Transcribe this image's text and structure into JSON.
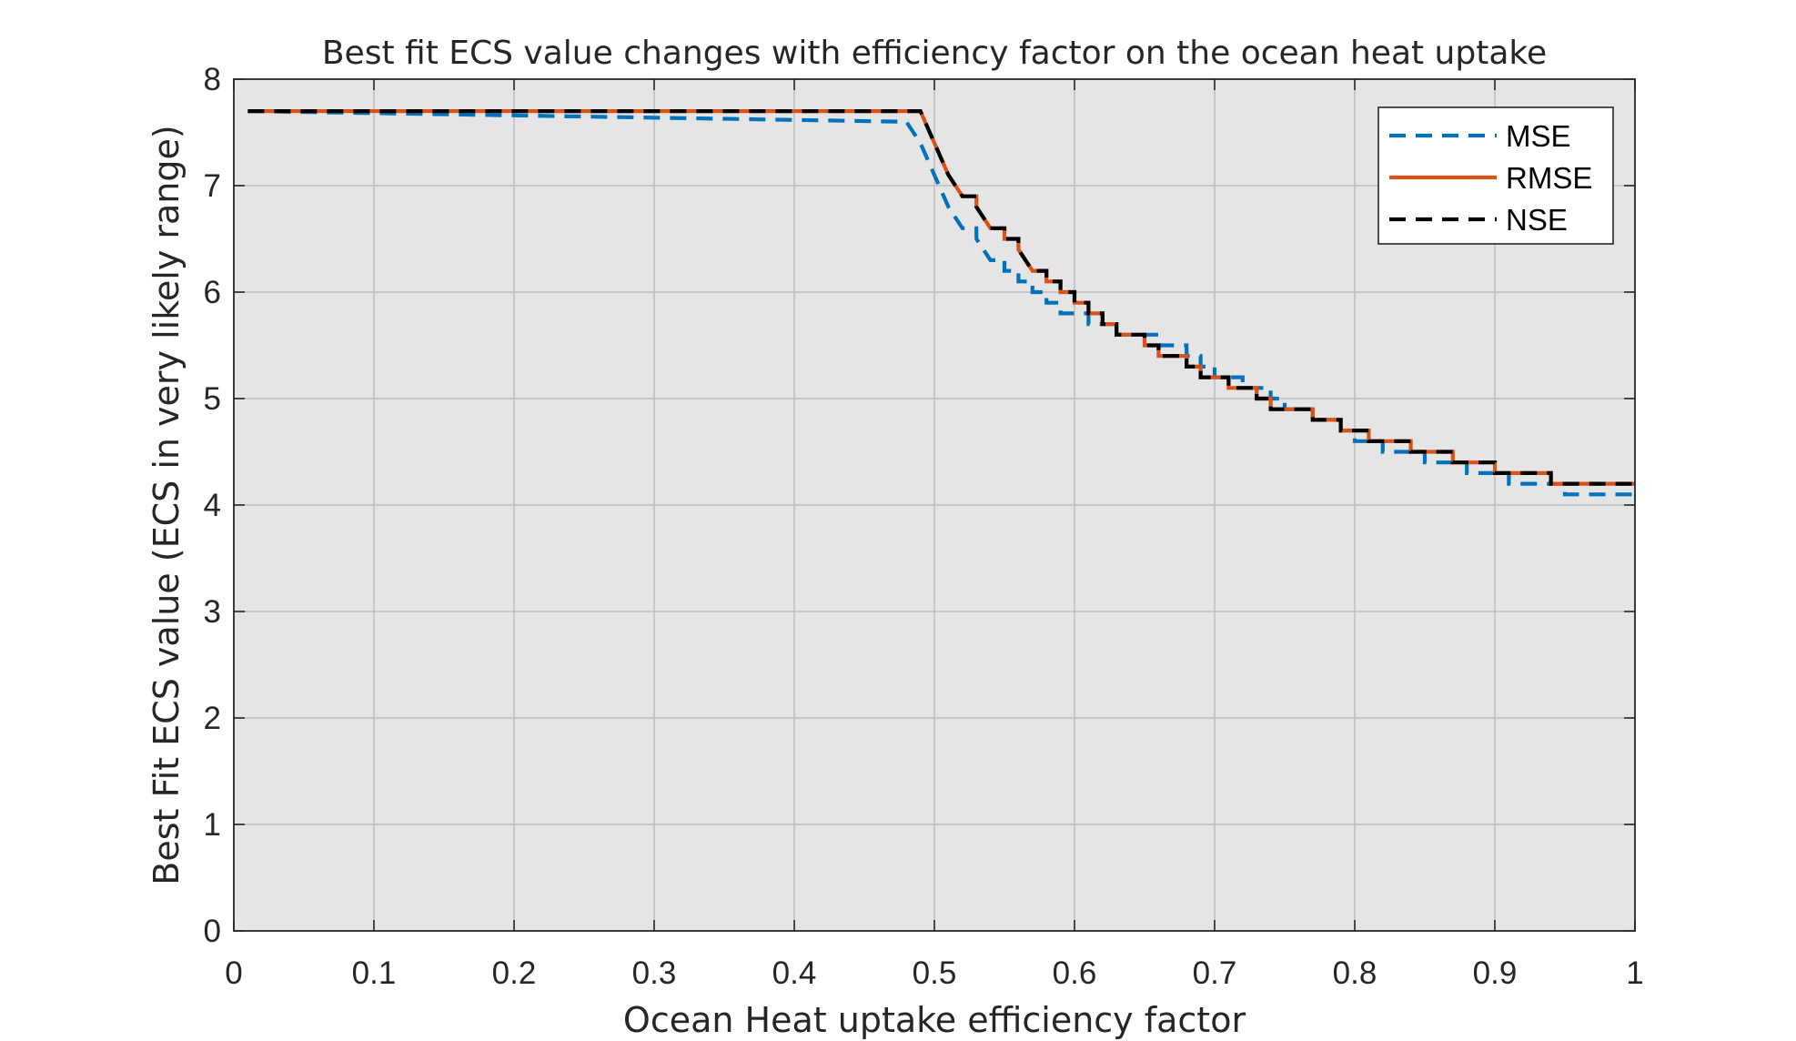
{
  "chart_data": {
    "type": "line",
    "title": "Best fit ECS value changes with efficiency factor on the ocean heat uptake",
    "xlabel": "Ocean Heat uptake efficiency factor",
    "ylabel": "Best Fit ECS value (ECS in very likely range)",
    "xlim": [
      0,
      1
    ],
    "ylim": [
      0,
      8
    ],
    "xticks": [
      0,
      0.1,
      0.2,
      0.3,
      0.4,
      0.5,
      0.6,
      0.7,
      0.8,
      0.9,
      1
    ],
    "xtick_labels": [
      "0",
      "0.1",
      "0.2",
      "0.3",
      "0.4",
      "0.5",
      "0.6",
      "0.7",
      "0.8",
      "0.9",
      "1"
    ],
    "yticks": [
      0,
      1,
      2,
      3,
      4,
      5,
      6,
      7,
      8
    ],
    "ytick_labels": [
      "0",
      "1",
      "2",
      "3",
      "4",
      "5",
      "6",
      "7",
      "8"
    ],
    "grid": true,
    "legend_position": "top-right",
    "background": "#e5e5e5",
    "series": [
      {
        "name": "MSE",
        "color": "#0072bd",
        "style": "dashed",
        "x": [
          0.01,
          0.48,
          0.49,
          0.5,
          0.51,
          0.52,
          0.53,
          0.54,
          0.55,
          0.56,
          0.57,
          0.58,
          0.59,
          0.6,
          0.61,
          0.62,
          0.63,
          0.64,
          0.65,
          0.66,
          0.67,
          0.68,
          0.69,
          0.7,
          0.71,
          0.72,
          0.73,
          0.74,
          0.75,
          0.76,
          0.77,
          0.78,
          0.79,
          0.8,
          0.81,
          0.82,
          0.83,
          0.84,
          0.85,
          0.86,
          0.87,
          0.88,
          0.89,
          0.9,
          0.91,
          0.92,
          0.93,
          0.94,
          0.95,
          0.96,
          0.97,
          0.98,
          0.99,
          1.0
        ],
        "y": [
          7.7,
          7.6,
          7.4,
          7.1,
          6.8,
          6.6,
          6.5,
          6.3,
          6.2,
          6.1,
          6.0,
          5.9,
          5.8,
          5.8,
          5.7,
          5.7,
          5.6,
          5.6,
          5.6,
          5.5,
          5.5,
          5.4,
          5.3,
          5.2,
          5.2,
          5.1,
          5.1,
          5.0,
          4.9,
          4.9,
          4.8,
          4.8,
          4.7,
          4.6,
          4.6,
          4.5,
          4.5,
          4.5,
          4.4,
          4.4,
          4.4,
          4.3,
          4.3,
          4.3,
          4.2,
          4.2,
          4.2,
          4.2,
          4.1,
          4.1,
          4.1,
          4.1,
          4.1,
          4.1
        ]
      },
      {
        "name": "RMSE",
        "color": "#d95319",
        "style": "solid",
        "x": [
          0.01,
          0.49,
          0.5,
          0.51,
          0.52,
          0.53,
          0.54,
          0.55,
          0.56,
          0.57,
          0.58,
          0.59,
          0.6,
          0.61,
          0.62,
          0.63,
          0.64,
          0.65,
          0.66,
          0.67,
          0.68,
          0.69,
          0.7,
          0.71,
          0.72,
          0.73,
          0.74,
          0.75,
          0.76,
          0.77,
          0.78,
          0.79,
          0.8,
          0.81,
          0.82,
          0.83,
          0.84,
          0.85,
          0.86,
          0.87,
          0.88,
          0.89,
          0.9,
          0.91,
          0.92,
          0.93,
          0.94,
          0.95,
          0.96,
          0.97,
          0.98,
          0.99,
          1.0
        ],
        "y": [
          7.7,
          7.7,
          7.4,
          7.1,
          6.9,
          6.8,
          6.6,
          6.5,
          6.4,
          6.2,
          6.1,
          6.0,
          5.9,
          5.8,
          5.7,
          5.6,
          5.6,
          5.5,
          5.4,
          5.4,
          5.3,
          5.2,
          5.2,
          5.1,
          5.1,
          5.0,
          4.9,
          4.9,
          4.9,
          4.8,
          4.8,
          4.7,
          4.7,
          4.6,
          4.6,
          4.6,
          4.5,
          4.5,
          4.5,
          4.4,
          4.4,
          4.4,
          4.3,
          4.3,
          4.3,
          4.3,
          4.2,
          4.2,
          4.2,
          4.2,
          4.2,
          4.2,
          4.2
        ]
      },
      {
        "name": "NSE",
        "color": "#000000",
        "style": "dashed",
        "x": [
          0.01,
          0.49,
          0.5,
          0.51,
          0.52,
          0.53,
          0.54,
          0.55,
          0.56,
          0.57,
          0.58,
          0.59,
          0.6,
          0.61,
          0.62,
          0.63,
          0.64,
          0.65,
          0.66,
          0.67,
          0.68,
          0.69,
          0.7,
          0.71,
          0.72,
          0.73,
          0.74,
          0.75,
          0.76,
          0.77,
          0.78,
          0.79,
          0.8,
          0.81,
          0.82,
          0.83,
          0.84,
          0.85,
          0.86,
          0.87,
          0.88,
          0.89,
          0.9,
          0.91,
          0.92,
          0.93,
          0.94,
          0.95,
          0.96,
          0.97,
          0.98,
          0.99,
          1.0
        ],
        "y": [
          7.7,
          7.7,
          7.4,
          7.1,
          6.9,
          6.8,
          6.6,
          6.5,
          6.4,
          6.2,
          6.1,
          6.0,
          5.9,
          5.8,
          5.7,
          5.6,
          5.6,
          5.5,
          5.4,
          5.4,
          5.3,
          5.2,
          5.2,
          5.1,
          5.1,
          5.0,
          4.9,
          4.9,
          4.9,
          4.8,
          4.8,
          4.7,
          4.7,
          4.6,
          4.6,
          4.6,
          4.5,
          4.5,
          4.5,
          4.4,
          4.4,
          4.4,
          4.3,
          4.3,
          4.3,
          4.3,
          4.2,
          4.2,
          4.2,
          4.2,
          4.2,
          4.2,
          4.2
        ]
      }
    ]
  }
}
